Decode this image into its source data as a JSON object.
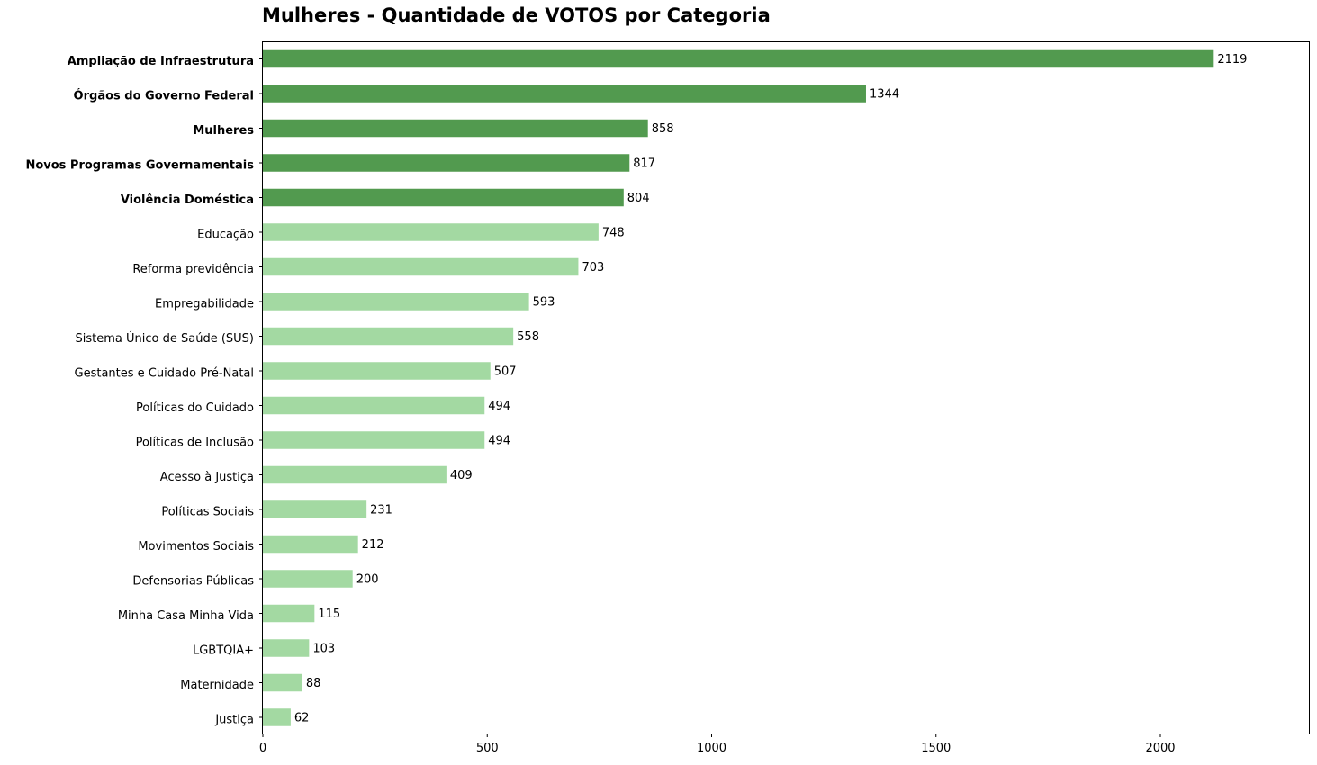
{
  "chart_data": {
    "type": "bar",
    "orientation": "horizontal",
    "title": "Mulheres - Quantidade de VOTOS por Categoria",
    "xlabel": "",
    "ylabel": "",
    "xlim": [
      0,
      2331
    ],
    "x_ticks": [
      0,
      500,
      1000,
      1500,
      2000
    ],
    "grid": false,
    "categories": [
      "Ampliação de Infraestrutura",
      "Órgãos do Governo Federal",
      "Mulheres",
      "Novos Programas Governamentais",
      "Violência Doméstica",
      "Educação",
      "Reforma previdência",
      "Empregabilidade",
      "Sistema Único de Saúde (SUS)",
      "Gestantes e Cuidado Pré-Natal",
      "Políticas do Cuidado",
      "Políticas de Inclusão",
      "Acesso à Justiça",
      "Políticas Sociais",
      "Movimentos Sociais",
      "Defensorias Públicas",
      "Minha Casa Minha Vida",
      "LGBTQIA+",
      "Maternidade",
      "Justiça"
    ],
    "values": [
      2119,
      1344,
      858,
      817,
      804,
      748,
      703,
      593,
      558,
      507,
      494,
      494,
      409,
      231,
      212,
      200,
      115,
      103,
      88,
      62
    ],
    "highlight_top_n": 5,
    "colors": {
      "highlight": "#529a4f",
      "normal": "#a3d9a2",
      "axis": "#000000"
    }
  }
}
